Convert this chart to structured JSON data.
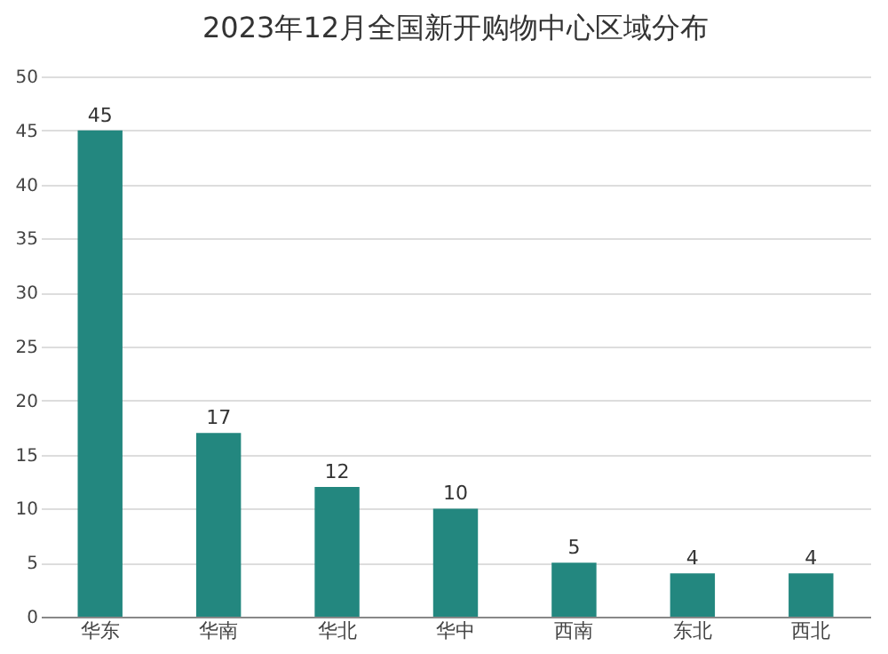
{
  "chart_data": {
    "type": "bar",
    "title": "2023年12月全国新开购物中心区域分布",
    "categories": [
      "华东",
      "华南",
      "华北",
      "华中",
      "西南",
      "东北",
      "西北"
    ],
    "values": [
      45,
      17,
      12,
      10,
      5,
      4,
      4
    ],
    "color": "#23877f",
    "ylim": [
      0,
      50
    ],
    "yticks": [
      0,
      5,
      10,
      15,
      20,
      25,
      30,
      35,
      40,
      45,
      50
    ],
    "grid": "y",
    "data_labels": true
  }
}
